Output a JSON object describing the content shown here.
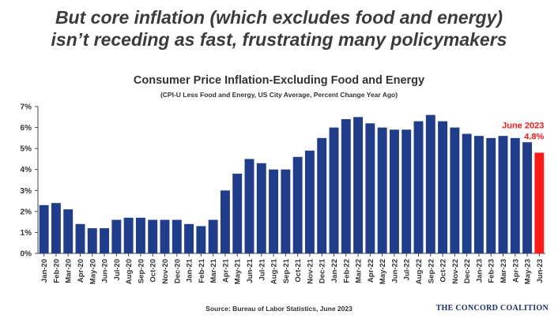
{
  "headline": {
    "line1": "But core inflation (which excludes food and energy)",
    "line2": "isn’t receding as fast, frustrating many policymakers"
  },
  "chart_data": {
    "type": "bar",
    "title": "Consumer Price Inflation-Excluding Food and Energy",
    "subtitle": "(CPI-U Less Food and Energy, US City Average, Percent Change Year Ago)",
    "xlabel": "",
    "ylabel": "",
    "ylim": [
      0,
      7
    ],
    "yticks": [
      "0%",
      "1%",
      "2%",
      "3%",
      "4%",
      "5%",
      "6%",
      "7%"
    ],
    "grid": false,
    "categories": [
      "Jan-20",
      "Feb-20",
      "Mar-20",
      "Apr-20",
      "May-20",
      "Jun-20",
      "Jul-20",
      "Aug-20",
      "Sep-20",
      "Oct-20",
      "Nov-20",
      "Dec-20",
      "Jan-21",
      "Feb-21",
      "Mar-21",
      "Apr-21",
      "May-21",
      "Jun-21",
      "Jul-21",
      "Aug-21",
      "Sep-21",
      "Oct-21",
      "Nov-21",
      "Dec-21",
      "Jan-22",
      "Feb-22",
      "Mar-22",
      "Apr-22",
      "May-22",
      "Jun-22",
      "Jul-22",
      "Aug-22",
      "Sep-22",
      "Oct-22",
      "Nov-22",
      "Dec-22",
      "Jan-23",
      "Feb-23",
      "Mar-23",
      "Apr-23",
      "May-23",
      "Jun-23"
    ],
    "values": [
      2.3,
      2.4,
      2.1,
      1.4,
      1.2,
      1.2,
      1.6,
      1.7,
      1.7,
      1.6,
      1.6,
      1.6,
      1.4,
      1.3,
      1.6,
      3.0,
      3.8,
      4.5,
      4.3,
      4.0,
      4.0,
      4.6,
      4.9,
      5.5,
      6.0,
      6.4,
      6.5,
      6.2,
      6.0,
      5.9,
      5.9,
      6.3,
      6.6,
      6.3,
      6.0,
      5.7,
      5.6,
      5.5,
      5.6,
      5.5,
      5.3,
      4.8
    ],
    "colors": {
      "bar": "#1f3d8a",
      "highlight": "#ff1a1a",
      "axis": "#444444",
      "text": "#333333"
    },
    "highlight_index": 41,
    "annotation": {
      "line1": "June 2023",
      "line2": "4.8%",
      "color": "#ff1a1a"
    }
  },
  "footer": {
    "source": "Source: Bureau of Labor Statistics, June 2023",
    "org": "THE CONCORD COALITION"
  }
}
